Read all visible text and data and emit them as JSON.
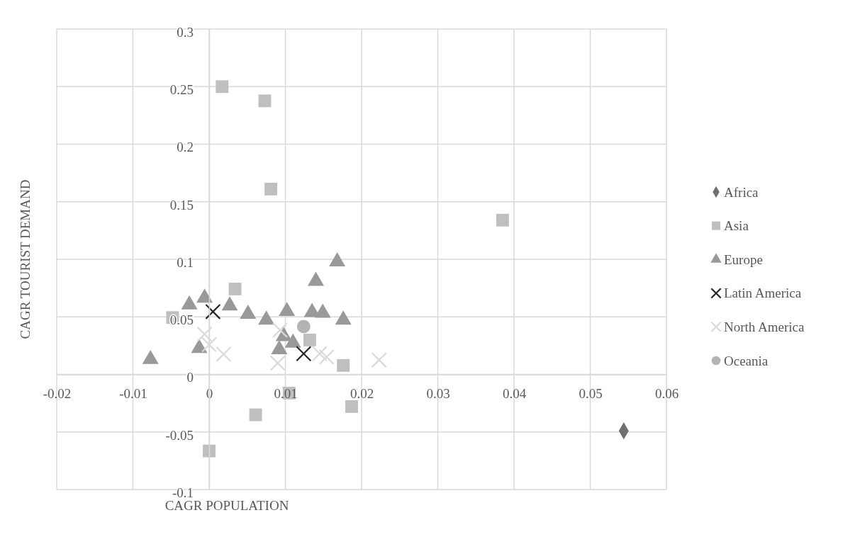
{
  "chart_data": {
    "type": "scatter",
    "xlabel": "CAGR POPULATION",
    "ylabel": "CAGR TOURIST DEMAND",
    "xlim": [
      -0.02,
      0.06
    ],
    "xticks": [
      -0.02,
      -0.01,
      0,
      0.01,
      0.02,
      0.03,
      0.04,
      0.05,
      0.06
    ],
    "ylim": [
      -0.1,
      0.3
    ],
    "yticks": [
      -0.1,
      -0.05,
      0,
      0.05,
      0.1,
      0.15,
      0.2,
      0.25,
      0.3
    ],
    "grid": true,
    "legend": "right",
    "series": [
      {
        "name": "Africa",
        "color": "#707070",
        "marker": "diamond",
        "x": [
          0.0544
        ],
        "values": [
          -0.049
        ]
      },
      {
        "name": "Asia",
        "color": "#bfbfbf",
        "marker": "square",
        "x": [
          0.0017,
          0.0073,
          0.0081,
          0.0385,
          0.0034,
          -0.0048,
          0.0132,
          0.0176,
          0.0105,
          0.0061,
          0.0187,
          0.0
        ],
        "values": [
          0.25,
          0.2376,
          0.161,
          0.134,
          0.0742,
          0.0494,
          0.0299,
          0.0078,
          -0.0162,
          -0.0351,
          -0.0279,
          -0.0665
        ]
      },
      {
        "name": "Europe",
        "color": "#999999",
        "marker": "triangle",
        "x": [
          0.0168,
          0.014,
          -0.0026,
          -0.0006,
          0.0027,
          0.0051,
          0.0075,
          0.0102,
          0.0135,
          0.0149,
          0.0176,
          0.0098,
          0.011,
          0.0092,
          -0.0013,
          -0.0077
        ],
        "values": [
          0.098,
          0.081,
          0.0606,
          0.0664,
          0.0596,
          0.0524,
          0.0473,
          0.0549,
          0.054,
          0.0533,
          0.0473,
          0.033,
          0.0274,
          0.0217,
          0.0227,
          0.0131
        ]
      },
      {
        "name": "Latin America",
        "color": "#262626",
        "marker": "cross",
        "x": [
          0.0005,
          0.0124
        ],
        "values": [
          0.0545,
          0.018
        ]
      },
      {
        "name": "North America",
        "color": "#d9d9d9",
        "marker": "cross",
        "x": [
          -0.0006,
          0.0,
          0.0019,
          0.0093,
          0.009,
          0.0145,
          0.0154,
          0.0223
        ],
        "values": [
          0.035,
          0.0258,
          0.0176,
          0.0385,
          0.0098,
          0.018,
          0.0151,
          0.0125
        ]
      },
      {
        "name": "Oceania",
        "color": "#b3b3b3",
        "marker": "circle",
        "x": [
          0.0124
        ],
        "values": [
          0.0416
        ]
      }
    ]
  }
}
